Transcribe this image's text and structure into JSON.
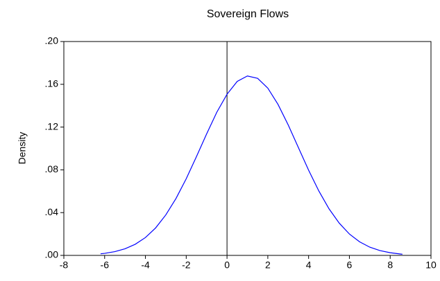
{
  "chart_data": {
    "type": "line",
    "title": "Sovereign Flows",
    "y_label": "Density",
    "x": [
      -6.2,
      -6,
      -5.5,
      -5,
      -4.5,
      -4,
      -3.5,
      -3,
      -2.5,
      -2,
      -1.5,
      -1,
      -0.5,
      0,
      0.5,
      1,
      1.5,
      2,
      2.5,
      3,
      3.5,
      4,
      4.5,
      5,
      5.5,
      6,
      6.5,
      7,
      7.5,
      8,
      8.5,
      8.6
    ],
    "series": [
      {
        "color": "#0000ff",
        "values": [
          0.0015,
          0.0019,
          0.0035,
          0.0062,
          0.0104,
          0.0167,
          0.0257,
          0.0379,
          0.0533,
          0.0717,
          0.0923,
          0.1136,
          0.1339,
          0.1507,
          0.1627,
          0.1678,
          0.1656,
          0.1564,
          0.1412,
          0.122,
          0.1008,
          0.0797,
          0.0603,
          0.0436,
          0.0302,
          0.02,
          0.0127,
          0.0077,
          0.0045,
          0.0025,
          0.0013,
          0.0011
        ]
      }
    ],
    "xlim": [
      -8,
      10
    ],
    "xticks": [
      -8,
      -6,
      -4,
      -2,
      0,
      2,
      4,
      6,
      8,
      10
    ],
    "ylim": [
      0,
      0.2
    ],
    "yticks": [
      {
        "value": 0,
        "label": ".00"
      },
      {
        "value": 0.04,
        "label": ".04"
      },
      {
        "value": 0.08,
        "label": ".08"
      },
      {
        "value": 0.12,
        "label": ".12"
      },
      {
        "value": 0.16,
        "label": ".16"
      },
      {
        "value": 0.2,
        "label": ".20"
      }
    ],
    "vline": 0,
    "grid": false
  }
}
